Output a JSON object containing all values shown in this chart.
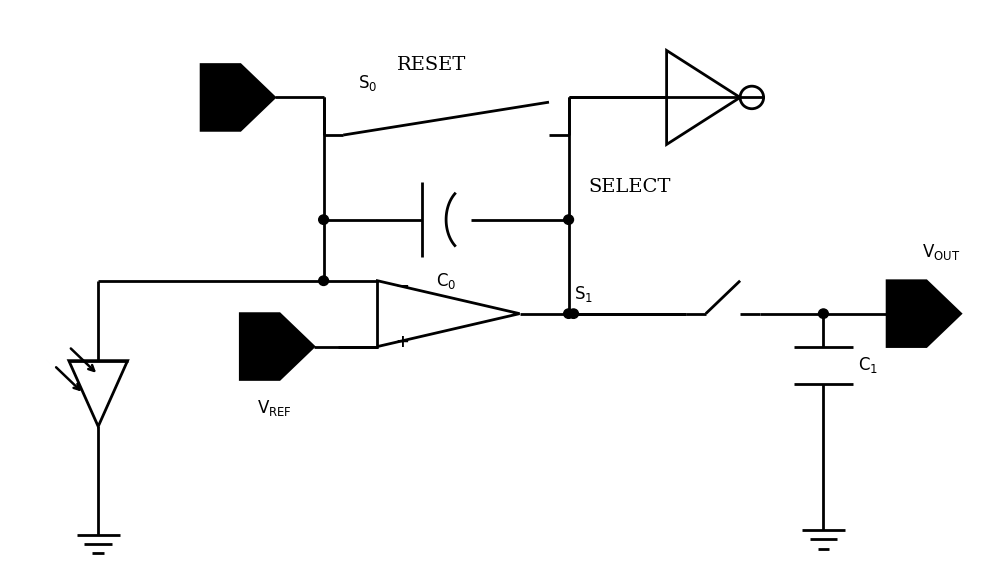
{
  "bg_color": "#ffffff",
  "lw": 2.0,
  "fig_width": 10.0,
  "fig_height": 5.85,
  "dpi": 100,
  "xlim": [
    0,
    100
  ],
  "ylim": [
    0,
    58.5
  ]
}
